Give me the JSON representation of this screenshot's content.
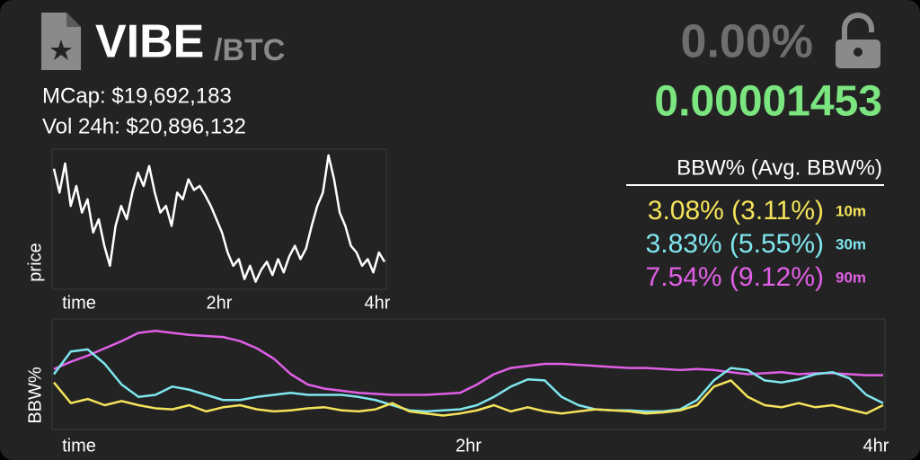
{
  "header": {
    "symbol": "VIBE",
    "pair": "/BTC",
    "mcap": "MCap: $19,692,183",
    "volume": "Vol 24h: $20,896,132",
    "change": "0.00%",
    "price": "0.00001453"
  },
  "bbw": {
    "heading": "BBW% (Avg. BBW%)",
    "rows": [
      {
        "value": "3.08% (3.11%)",
        "interval": "10m",
        "color": "#f4e35a"
      },
      {
        "value": "3.83% (5.55%)",
        "interval": "30m",
        "color": "#7fe6ee"
      },
      {
        "value": "7.54% (9.12%)",
        "interval": "90m",
        "color": "#e05fe6"
      }
    ]
  },
  "chart_data": [
    {
      "type": "line",
      "ylabel": "price",
      "xlabels": [
        "time",
        "2hr",
        "4hr"
      ],
      "ylim": [
        0,
        100
      ],
      "series": [
        {
          "color": "#ffffff",
          "values": [
            88,
            70,
            92,
            60,
            75,
            55,
            65,
            40,
            50,
            30,
            15,
            45,
            60,
            50,
            70,
            85,
            75,
            90,
            70,
            55,
            60,
            45,
            70,
            65,
            80,
            72,
            75,
            68,
            60,
            50,
            40,
            25,
            15,
            20,
            5,
            15,
            3,
            12,
            18,
            8,
            20,
            10,
            22,
            30,
            20,
            28,
            45,
            60,
            70,
            98,
            80,
            55,
            45,
            30,
            25,
            15,
            20,
            10,
            25,
            18
          ]
        }
      ]
    },
    {
      "type": "line",
      "ylabel": "BBW%",
      "xlabels": [
        "time",
        "2hr",
        "4hr"
      ],
      "ylim": [
        0,
        100
      ],
      "series": [
        {
          "color": "#e05fe6",
          "values": [
            55,
            62,
            68,
            75,
            82,
            90,
            92,
            90,
            88,
            87,
            86,
            82,
            75,
            65,
            50,
            40,
            36,
            34,
            32,
            31,
            30,
            30,
            30,
            31,
            32,
            40,
            50,
            56,
            58,
            60,
            60,
            59,
            58,
            57,
            56,
            56,
            55,
            54,
            55,
            54,
            52,
            50,
            51,
            52,
            50,
            51,
            51,
            50,
            49,
            49
          ]
        },
        {
          "color": "#7fe6ee",
          "values": [
            50,
            72,
            74,
            60,
            40,
            28,
            30,
            38,
            35,
            30,
            25,
            25,
            28,
            30,
            32,
            30,
            30,
            30,
            28,
            25,
            20,
            15,
            14,
            15,
            16,
            20,
            28,
            38,
            45,
            44,
            28,
            20,
            16,
            15,
            15,
            14,
            14,
            16,
            25,
            44,
            56,
            54,
            44,
            42,
            45,
            50,
            52,
            46,
            30,
            22
          ]
        },
        {
          "color": "#f4e35a",
          "values": [
            42,
            22,
            26,
            20,
            24,
            20,
            17,
            16,
            20,
            14,
            18,
            20,
            16,
            14,
            15,
            17,
            18,
            15,
            14,
            16,
            22,
            14,
            12,
            10,
            12,
            15,
            20,
            14,
            18,
            14,
            12,
            14,
            16,
            15,
            14,
            12,
            13,
            15,
            20,
            38,
            44,
            28,
            20,
            18,
            22,
            18,
            20,
            16,
            12,
            20
          ]
        }
      ]
    }
  ]
}
